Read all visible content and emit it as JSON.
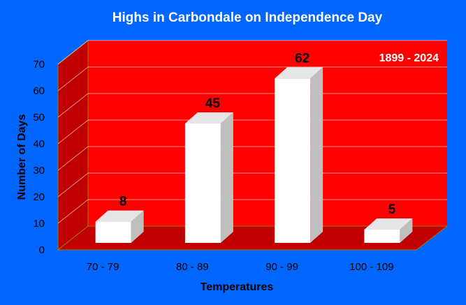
{
  "chart_data": {
    "type": "bar",
    "title": "Highs in Carbondale on Independence Day",
    "annotation": "1899 - 2024",
    "xlabel": "Temperatures",
    "ylabel": "Number of Days",
    "categories": [
      "70 - 79",
      "80 - 89",
      "90 - 99",
      "100 - 109"
    ],
    "values": [
      8,
      45,
      62,
      5
    ],
    "data_labels": [
      "8",
      "45",
      "62",
      "5"
    ],
    "ylim": [
      0,
      70
    ],
    "yticks": [
      0,
      10,
      20,
      30,
      40,
      50,
      60,
      70
    ],
    "grid": true,
    "style": "3d",
    "colors": {
      "background": "#0066FF",
      "plot_wall": "#FF0000",
      "side_wall": "#C00000",
      "floor": "#C00000",
      "bar_front": "#FFFFFF",
      "bar_side": "#BFBFBF",
      "bar_top": "#E6E6E6",
      "grid": "#FFFFFF",
      "text": "#000000",
      "title_text": "#FFFFFF"
    }
  }
}
